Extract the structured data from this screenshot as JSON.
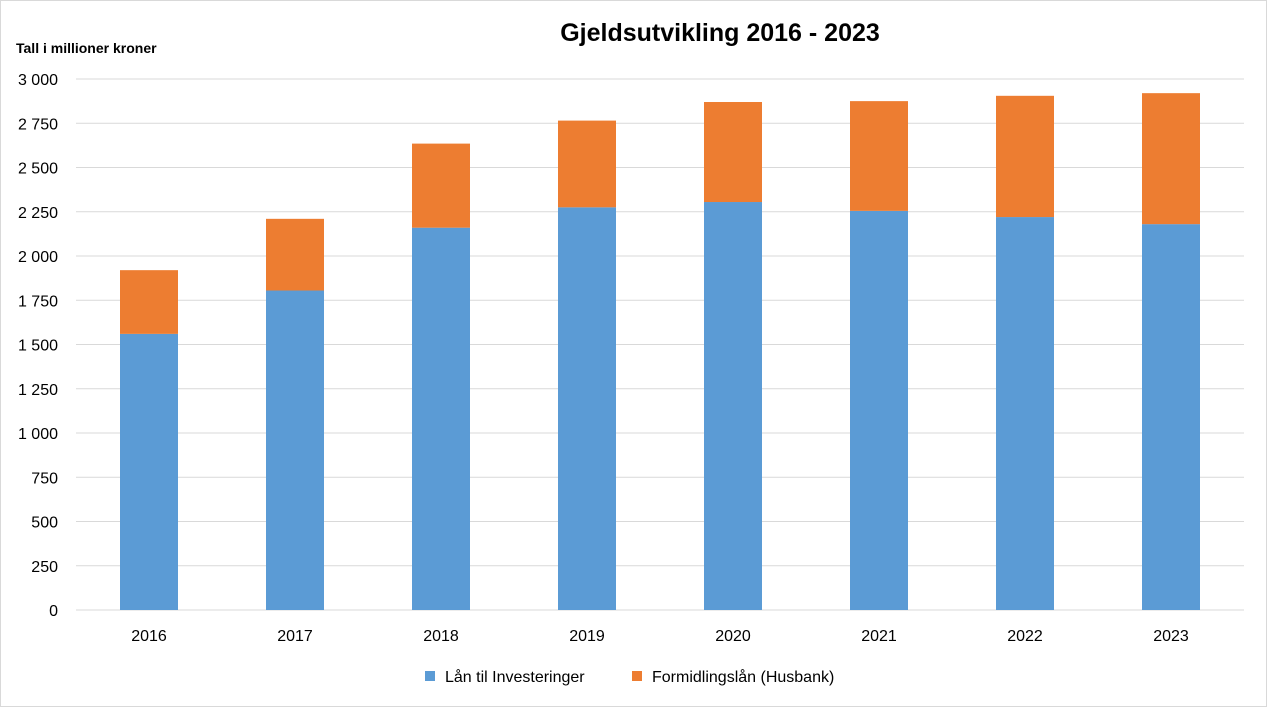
{
  "chart_data": {
    "type": "bar",
    "stacked": true,
    "title": "Gjeldsutvikling 2016 - 2023",
    "ylabel": "Tall i millioner kroner",
    "xlabel": "",
    "categories": [
      "2016",
      "2017",
      "2018",
      "2019",
      "2020",
      "2021",
      "2022",
      "2023"
    ],
    "series": [
      {
        "name": "Lån til Investeringer",
        "color": "#5b9bd5",
        "values": [
          1560,
          1805,
          2160,
          2275,
          2305,
          2255,
          2220,
          2180
        ]
      },
      {
        "name": "Formidlingslån (Husbank)",
        "color": "#ed7d31",
        "values": [
          360,
          405,
          475,
          490,
          565,
          620,
          685,
          740
        ]
      }
    ],
    "ylim": [
      0,
      3000
    ],
    "yticks": [
      0,
      250,
      500,
      750,
      1000,
      1250,
      1500,
      1750,
      2000,
      2250,
      2500,
      2750,
      3000
    ],
    "ytick_labels": [
      "0",
      "250",
      "500",
      "750",
      "1 000",
      "1 250",
      "1 500",
      "1 750",
      "2 000",
      "2 250",
      "2 500",
      "2 750",
      "3 000"
    ],
    "grid": true,
    "gridColor": "#d9d9d9",
    "legend_position": "bottom"
  }
}
